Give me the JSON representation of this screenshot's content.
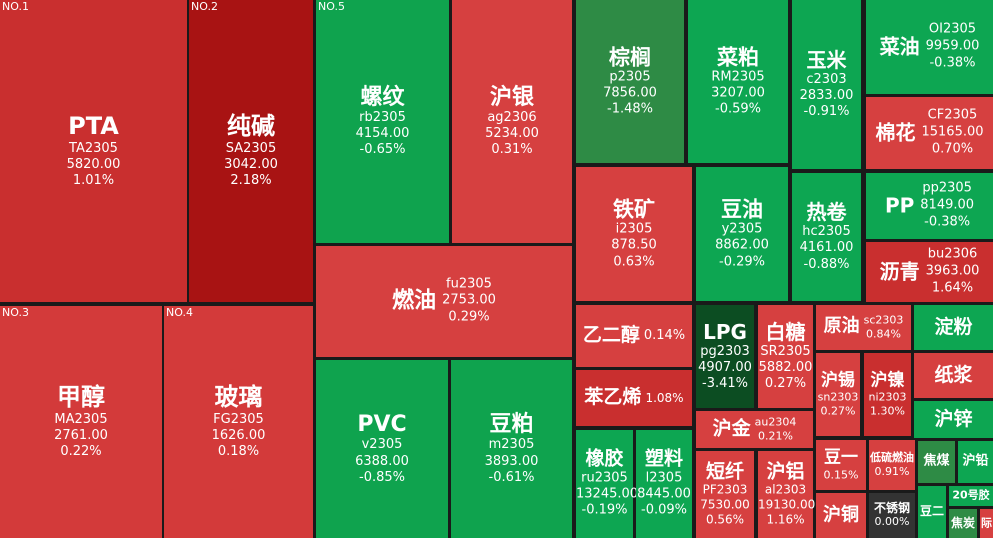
{
  "tiles": [
    {
      "rank": "NO.1",
      "name": "PTA",
      "code": "TA2305",
      "price": "5820.00",
      "change": "1.01%"
    },
    {
      "rank": "NO.2",
      "name": "纯碱",
      "code": "SA2305",
      "price": "3042.00",
      "change": "2.18%"
    },
    {
      "rank": "NO.3",
      "name": "甲醇",
      "code": "MA2305",
      "price": "2761.00",
      "change": "0.22%"
    },
    {
      "rank": "NO.4",
      "name": "玻璃",
      "code": "FG2305",
      "price": "1626.00",
      "change": "0.18%"
    },
    {
      "rank": "NO.5",
      "name": "螺纹",
      "code": "rb2305",
      "price": "4154.00",
      "change": "-0.65%"
    },
    {
      "name": "沪银",
      "code": "ag2306",
      "price": "5234.00",
      "change": "0.31%"
    },
    {
      "name": "燃油",
      "code": "fu2305",
      "price": "2753.00",
      "change": "0.29%"
    },
    {
      "name": "PVC",
      "code": "v2305",
      "price": "6388.00",
      "change": "-0.85%"
    },
    {
      "name": "豆粕",
      "code": "m2305",
      "price": "3893.00",
      "change": "-0.61%"
    },
    {
      "name": "棕榈",
      "code": "p2305",
      "price": "7856.00",
      "change": "-1.48%"
    },
    {
      "name": "菜粕",
      "code": "RM2305",
      "price": "3207.00",
      "change": "-0.59%"
    },
    {
      "name": "玉米",
      "code": "c2303",
      "price": "2833.00",
      "change": "-0.91%"
    },
    {
      "name": "菜油",
      "code": "OI2305",
      "price": "9959.00",
      "change": "-0.38%"
    },
    {
      "name": "棉花",
      "code": "CF2305",
      "price": "15165.00",
      "change": "0.70%"
    },
    {
      "name": "铁矿",
      "code": "i2305",
      "price": "878.50",
      "change": "0.63%"
    },
    {
      "name": "豆油",
      "code": "y2305",
      "price": "8862.00",
      "change": "-0.29%"
    },
    {
      "name": "热卷",
      "code": "hc2305",
      "price": "4161.00",
      "change": "-0.88%"
    },
    {
      "name": "PP",
      "code": "pp2305",
      "price": "8149.00",
      "change": "-0.38%"
    },
    {
      "name": "沥青",
      "code": "bu2306",
      "price": "3963.00",
      "change": "1.64%"
    },
    {
      "name": "乙二醇",
      "change": "0.14%"
    },
    {
      "name": "苯乙烯",
      "change": "1.08%"
    },
    {
      "name": "LPG",
      "code": "pg2303",
      "price": "4907.00",
      "change": "-3.41%"
    },
    {
      "name": "白糖",
      "code": "SR2305",
      "price": "5882.00",
      "change": "0.27%"
    },
    {
      "name": "原油",
      "code": "sc2303",
      "change": "0.84%"
    },
    {
      "name": "淀粉"
    },
    {
      "name": "沪金",
      "code": "au2304",
      "change": "0.21%"
    },
    {
      "name": "沪锡",
      "code": "sn2303",
      "change": "0.27%"
    },
    {
      "name": "沪镍",
      "code": "ni2303",
      "change": "1.30%"
    },
    {
      "name": "纸浆"
    },
    {
      "name": "沪锌"
    },
    {
      "name": "橡胶",
      "code": "ru2305",
      "price": "13245.00",
      "change": "-0.19%"
    },
    {
      "name": "塑料",
      "code": "l2305",
      "price": "8445.00",
      "change": "-0.09%"
    },
    {
      "name": "短纤",
      "code": "PF2303",
      "price": "7530.00",
      "change": "0.56%"
    },
    {
      "name": "沪铝",
      "code": "al2303",
      "price": "19130.00",
      "change": "1.16%"
    },
    {
      "name": "豆一",
      "change": "0.15%"
    },
    {
      "name": "低硫燃油",
      "change": "0.91%"
    },
    {
      "name": "焦煤"
    },
    {
      "name": "沪铅"
    },
    {
      "name": "沪铜"
    },
    {
      "name": "不锈钢",
      "change": "0.00%"
    },
    {
      "name": "豆二"
    },
    {
      "name": "20号胶"
    },
    {
      "name": "焦炭"
    },
    {
      "name": "际"
    }
  ]
}
